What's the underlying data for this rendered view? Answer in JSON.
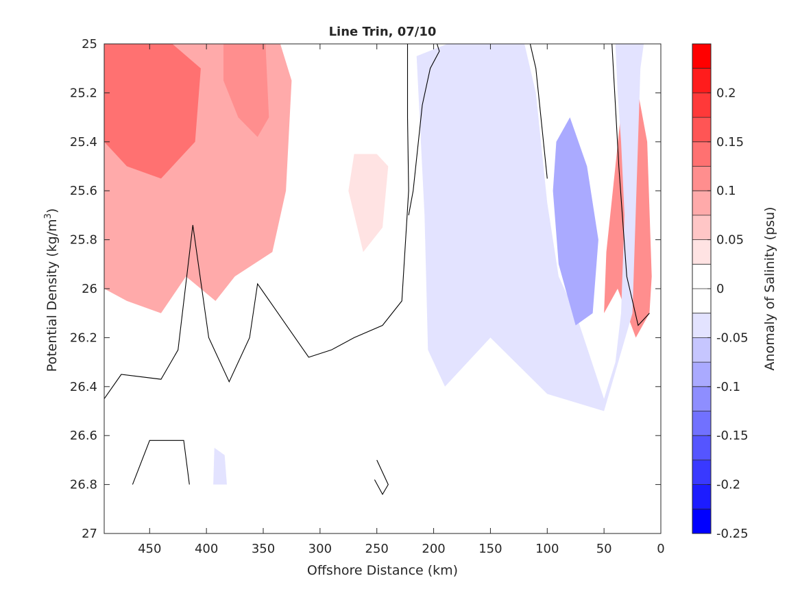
{
  "chart_data": {
    "type": "heatmap",
    "subtype": "filled-contour",
    "title": "Line Trin, 07/10",
    "xlabel": "Offshore Distance (km)",
    "ylabel": "Potential Density (kg/m³)",
    "ylabel_parts": [
      "Potential Density (kg/m",
      "3",
      ")"
    ],
    "x_reversed": true,
    "y_reversed": true,
    "xlim": [
      490,
      0
    ],
    "ylim": [
      25,
      27
    ],
    "xticks": [
      450,
      400,
      350,
      300,
      250,
      200,
      150,
      100,
      50,
      0
    ],
    "xtick_labels": [
      "450",
      "400",
      "350",
      "300",
      "250",
      "200",
      "150",
      "100",
      "50",
      "0"
    ],
    "yticks": [
      25,
      25.2,
      25.4,
      25.6,
      25.8,
      26,
      26.2,
      26.4,
      26.6,
      26.8,
      27
    ],
    "ytick_labels": [
      "25",
      "25.2",
      "25.4",
      "25.6",
      "25.8",
      "26",
      "26.2",
      "26.4",
      "26.6",
      "26.8",
      "27"
    ],
    "grid": false,
    "colorbar": {
      "label": "Anomaly of Salinity (psu)",
      "range": [
        -0.25,
        0.25
      ],
      "levels": [
        -0.25,
        -0.2,
        -0.15,
        -0.1,
        -0.05,
        0,
        0.05,
        0.1,
        0.15,
        0.2,
        0.25
      ],
      "tick_values": [
        0.2,
        0.15,
        0.1,
        0.05,
        0,
        -0.05,
        -0.1,
        -0.15,
        -0.2,
        -0.25
      ],
      "tick_labels": [
        "0.2",
        "0.15",
        "0.1",
        "0.05",
        "0",
        "-0.05",
        "-0.1",
        "-0.15",
        "-0.2",
        "-0.25"
      ],
      "colors": [
        "#0000ff",
        "#1c1cff",
        "#3939ff",
        "#5555ff",
        "#7171ff",
        "#8e8eff",
        "#aaaaff",
        "#c6c6ff",
        "#e3e3ff",
        "#ffffff",
        "#ffffff",
        "#ffe3e3",
        "#ffc6c6",
        "#ffaaaa",
        "#ff8e8e",
        "#ff7171",
        "#ff5555",
        "#ff3939",
        "#ff1c1c",
        "#ff0000"
      ]
    },
    "regions": [
      {
        "name": "nearshore high-salinity wedge",
        "value": 0.22,
        "color": "#ff1c1c",
        "points": [
          [
            15,
            25.5
          ],
          [
            13,
            25.6
          ],
          [
            12,
            25.74
          ],
          [
            15,
            25.76
          ],
          [
            22,
            25.62
          ],
          [
            28,
            25.45
          ],
          [
            32,
            25.35
          ]
        ]
      },
      {
        "name": "nearshore salty anomaly",
        "value": 0.12,
        "color": "#ff8e8e",
        "points": [
          [
            31,
            25.1
          ],
          [
            40,
            25.5
          ],
          [
            48,
            25.85
          ],
          [
            50,
            26.1
          ],
          [
            38,
            26.0
          ],
          [
            22,
            26.2
          ],
          [
            10,
            26.1
          ],
          [
            8,
            25.95
          ],
          [
            12,
            25.4
          ],
          [
            20,
            25.2
          ]
        ]
      },
      {
        "name": "offshore warm-salty region",
        "value": 0.1,
        "color": "#ffaaaa",
        "points": [
          [
            490,
            25.0
          ],
          [
            428,
            25.0
          ],
          [
            335,
            25.0
          ],
          [
            325,
            25.15
          ],
          [
            330,
            25.6
          ],
          [
            342,
            25.85
          ],
          [
            375,
            25.95
          ],
          [
            392,
            26.05
          ],
          [
            418,
            25.95
          ],
          [
            440,
            26.1
          ],
          [
            470,
            26.05
          ],
          [
            490,
            26.0
          ]
        ]
      },
      {
        "name": "offshore salty core",
        "value": 0.18,
        "color": "#ff7171",
        "points": [
          [
            490,
            25.0
          ],
          [
            430,
            25.0
          ],
          [
            405,
            25.1
          ],
          [
            410,
            25.4
          ],
          [
            440,
            25.55
          ],
          [
            470,
            25.5
          ],
          [
            490,
            25.4
          ]
        ]
      },
      {
        "name": "offshore salty band",
        "value": 0.14,
        "color": "#ff8e8e",
        "points": [
          [
            385,
            25.0
          ],
          [
            348,
            25.0
          ],
          [
            345,
            25.3
          ],
          [
            355,
            25.38
          ],
          [
            372,
            25.3
          ],
          [
            385,
            25.15
          ]
        ]
      },
      {
        "name": "mid-section weak salty patch",
        "value": 0.03,
        "color": "#ffe3e3",
        "points": [
          [
            270,
            25.45
          ],
          [
            250,
            25.45
          ],
          [
            240,
            25.5
          ],
          [
            245,
            25.75
          ],
          [
            262,
            25.85
          ],
          [
            275,
            25.6
          ]
        ]
      },
      {
        "name": "shelf-break fresh tongue",
        "value": -0.05,
        "color": "#e3e3ff",
        "points": [
          [
            215,
            25.05
          ],
          [
            188,
            25.0
          ],
          [
            120,
            25.0
          ],
          [
            110,
            25.2
          ],
          [
            100,
            25.65
          ],
          [
            90,
            25.95
          ],
          [
            75,
            26.1
          ],
          [
            50,
            26.45
          ],
          [
            40,
            26.3
          ],
          [
            35,
            26.1
          ],
          [
            32,
            25.7
          ],
          [
            35,
            25.4
          ],
          [
            38,
            25.2
          ],
          [
            40,
            25.0
          ],
          [
            15,
            25.0
          ],
          [
            18,
            25.1
          ],
          [
            25,
            26.1
          ],
          [
            50,
            26.5
          ],
          [
            100,
            26.43
          ],
          [
            150,
            26.2
          ],
          [
            190,
            26.4
          ],
          [
            205,
            26.25
          ],
          [
            208,
            25.7
          ]
        ]
      },
      {
        "name": "subsurface fresh core",
        "value": -0.12,
        "color": "#aaaaff",
        "points": [
          [
            92,
            25.4
          ],
          [
            80,
            25.3
          ],
          [
            65,
            25.5
          ],
          [
            55,
            25.8
          ],
          [
            60,
            26.1
          ],
          [
            75,
            26.15
          ],
          [
            90,
            25.9
          ],
          [
            95,
            25.6
          ]
        ]
      },
      {
        "name": "deep fresh patch",
        "value": -0.04,
        "color": "#e3e3ff",
        "points": [
          [
            393,
            26.65
          ],
          [
            384,
            26.68
          ],
          [
            382,
            26.8
          ],
          [
            394,
            26.8
          ]
        ]
      }
    ],
    "contour_lines": [
      {
        "name": "zero contour upper",
        "value": 0,
        "points": [
          [
            490,
            26.45
          ],
          [
            475,
            26.35
          ],
          [
            440,
            26.37
          ],
          [
            425,
            26.25
          ],
          [
            412,
            25.74
          ],
          [
            398,
            26.2
          ],
          [
            380,
            26.38
          ],
          [
            362,
            26.2
          ],
          [
            355,
            25.98
          ],
          [
            340,
            26.08
          ],
          [
            310,
            26.28
          ],
          [
            290,
            26.25
          ],
          [
            270,
            26.2
          ],
          [
            245,
            26.15
          ],
          [
            228,
            26.05
          ],
          [
            222,
            25.6
          ],
          [
            223,
            25.3
          ],
          [
            223,
            25.0
          ]
        ]
      },
      {
        "name": "zero contour right",
        "value": 0,
        "points": [
          [
            197,
            25.0
          ],
          [
            195,
            25.03
          ],
          [
            203,
            25.1
          ],
          [
            210,
            25.25
          ],
          [
            218,
            25.6
          ],
          [
            222,
            25.7
          ]
        ]
      },
      {
        "name": "zero contour shelf",
        "value": 0,
        "points": [
          [
            100,
            25.55
          ],
          [
            110,
            25.1
          ],
          [
            115,
            25.0
          ]
        ]
      },
      {
        "name": "zero contour nearshore",
        "value": 0,
        "points": [
          [
            43,
            25.0
          ],
          [
            37,
            25.5
          ],
          [
            30,
            25.95
          ],
          [
            20,
            26.15
          ],
          [
            10,
            26.1
          ]
        ]
      },
      {
        "name": "zero contour deep",
        "value": 0,
        "points": [
          [
            465,
            26.8
          ],
          [
            450,
            26.62
          ],
          [
            420,
            26.62
          ],
          [
            415,
            26.8
          ]
        ]
      },
      {
        "name": "zero contour deep small",
        "value": 0,
        "points": [
          [
            250,
            26.7
          ],
          [
            240,
            26.8
          ],
          [
            245,
            26.84
          ],
          [
            252,
            26.78
          ]
        ]
      }
    ]
  }
}
